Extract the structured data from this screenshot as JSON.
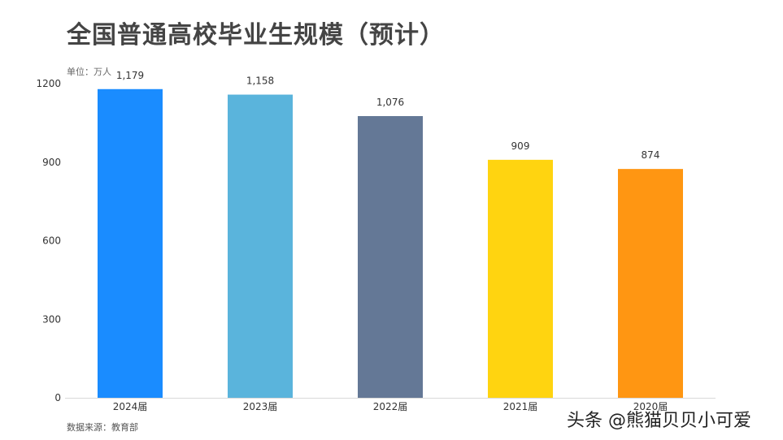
{
  "title": "全国普通高校毕业生规模（预计）",
  "unit_label": "单位：万人",
  "source": "数据来源：教育部",
  "watermark": "头条 @熊猫贝贝小可爱",
  "chart_data": {
    "type": "bar",
    "categories": [
      "2024届",
      "2023届",
      "2022届",
      "2021届",
      "2020届"
    ],
    "values": [
      1179,
      1158,
      1076,
      909,
      874
    ],
    "value_labels": [
      "1,179",
      "1,158",
      "1,076",
      "909",
      "874"
    ],
    "colors": [
      "#1a8cff",
      "#5ab4dc",
      "#647896",
      "#ffd410",
      "#ff9612"
    ],
    "ylim": [
      0,
      1200
    ],
    "yticks": [
      0,
      300,
      600,
      900,
      1200
    ],
    "ytick_labels": [
      "0",
      "300",
      "600",
      "900",
      "1200"
    ],
    "grid": false,
    "legend": "none"
  }
}
